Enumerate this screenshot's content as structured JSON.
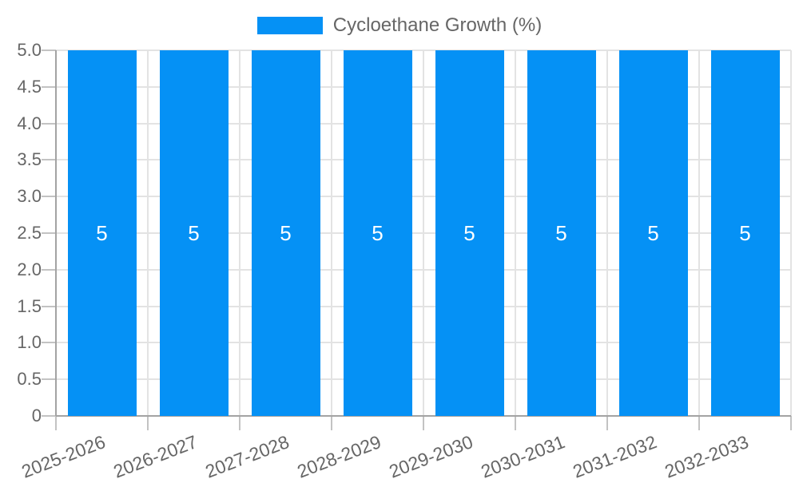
{
  "legend": {
    "label": "Cycloethane Growth (%)"
  },
  "colors": {
    "bar": "#0591f5",
    "grid": "#e3e3e3",
    "axis_line": "#a3a3a3",
    "tick": "#c3c3c3",
    "axis_label": "#666666",
    "legend_label": "#666666",
    "value_label": "#ffffff",
    "background": "#ffffff"
  },
  "chart_data": {
    "type": "bar",
    "title": "",
    "xlabel": "",
    "ylabel": "",
    "categories": [
      "2025-2026",
      "2026-2027",
      "2027-2028",
      "2028-2029",
      "2029-2030",
      "2030-2031",
      "2031-2032",
      "2032-2033"
    ],
    "series": [
      {
        "name": "Cycloethane Growth (%)",
        "values": [
          5,
          5,
          5,
          5,
          5,
          5,
          5,
          5
        ]
      }
    ],
    "bar_value_labels": [
      "5",
      "5",
      "5",
      "5",
      "5",
      "5",
      "5",
      "5"
    ],
    "ylim": [
      0,
      5
    ],
    "ytick_step": 0.5,
    "ytick_labels": [
      "5.0",
      "4.5",
      "4.0",
      "3.5",
      "3.0",
      "2.5",
      "2.0",
      "1.5",
      "1.0",
      "0.5",
      "0"
    ],
    "grid": true,
    "legend_position": "top",
    "x_label_rotation_deg": -21
  }
}
